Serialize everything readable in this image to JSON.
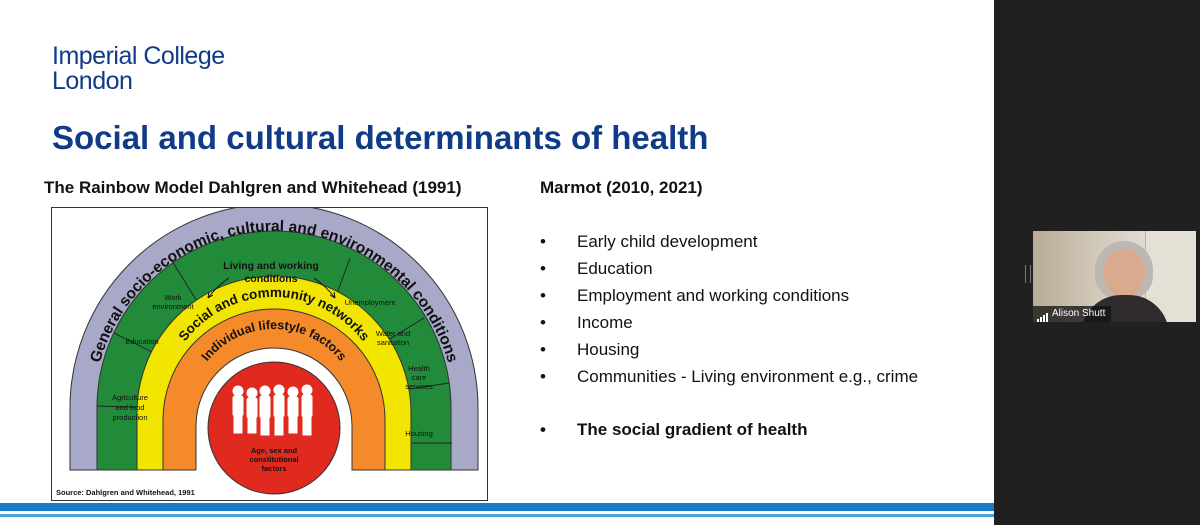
{
  "slide": {
    "logo": {
      "line1": "Imperial College",
      "line2": "London"
    },
    "title": "Social and cultural determinants of health",
    "left_heading": "The Rainbow Model Dahlgren and Whitehead (1991)",
    "right_heading": "Marmot  (2010, 2021)",
    "bullet_symbol": "•",
    "bullets": [
      "Early child development",
      "Education",
      "Employment and working conditions",
      "Income",
      "Housing",
      "Communities - Living environment e.g., crime"
    ],
    "key_bullet": "The social gradient of health"
  },
  "diagram": {
    "outer_arc_text": "General socio-economic, cultural and environmental conditions",
    "living_label_1": "Living and working",
    "living_label_2": "conditions",
    "sectors": {
      "agriculture": [
        "Agriculture",
        "and food",
        "production"
      ],
      "education": [
        "Education"
      ],
      "work": [
        "Work",
        "environment"
      ],
      "unemployment": [
        "Unemployment"
      ],
      "water": [
        "Water and",
        "sanitation"
      ],
      "health": [
        "Health",
        "care",
        "services"
      ],
      "housing": [
        "Housing"
      ]
    },
    "social_arc_text": "Social and community networks",
    "lifestyle_arc_text": "Individual lifestyle factors",
    "core_label": [
      "Age, sex and",
      "constitutional",
      "factors"
    ],
    "source": "Source: Dahlgren and Whitehead, 1991",
    "colors": {
      "outer": "#a8a8c8",
      "green": "#228b3a",
      "yellow": "#f2e600",
      "orange": "#f58a2a",
      "red": "#e02a1f"
    }
  },
  "participant": {
    "name": "Alison Shutt"
  },
  "colors": {
    "brand_blue": "#0f3b87",
    "accent_bar": "#1a7bc8"
  }
}
